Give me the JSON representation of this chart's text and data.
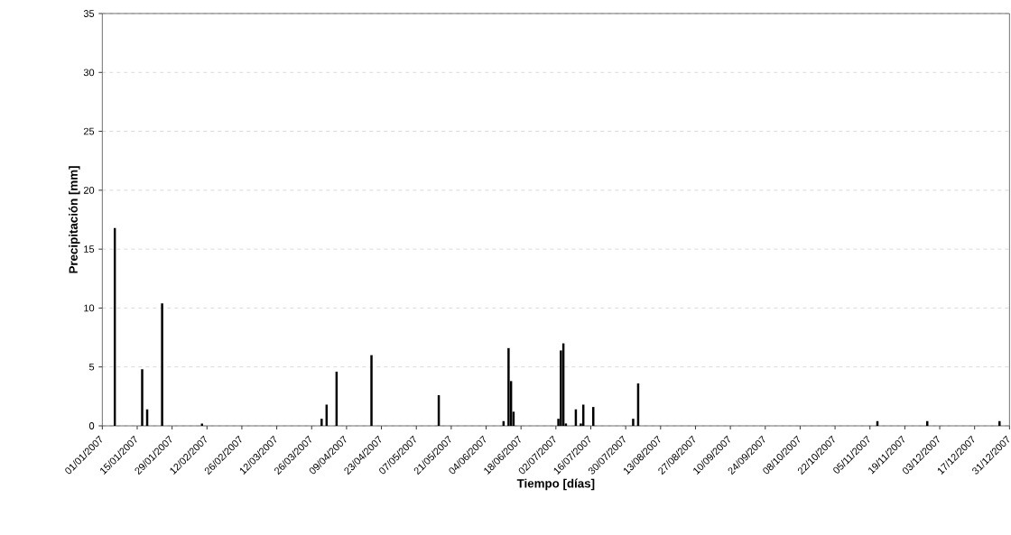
{
  "chart_data": {
    "type": "bar",
    "xlabel": "Tiempo [días]",
    "ylabel": "Precipitación [mm]",
    "x": [
      "2007-01-06",
      "2007-01-17",
      "2007-01-19",
      "2007-01-25",
      "2007-02-10",
      "2007-03-30",
      "2007-04-01",
      "2007-04-05",
      "2007-04-19",
      "2007-05-16",
      "2007-06-11",
      "2007-06-13",
      "2007-06-14",
      "2007-06-15",
      "2007-07-03",
      "2007-07-04",
      "2007-07-05",
      "2007-07-06",
      "2007-07-10",
      "2007-07-12",
      "2007-07-13",
      "2007-07-17",
      "2007-08-02",
      "2007-08-04",
      "2007-11-08",
      "2007-11-28",
      "2007-12-27"
    ],
    "values": [
      16.8,
      4.8,
      1.4,
      10.4,
      0.2,
      0.6,
      1.8,
      4.6,
      6.0,
      2.6,
      0.4,
      6.6,
      3.8,
      1.2,
      0.6,
      6.4,
      7.0,
      0.2,
      1.4,
      0.2,
      1.8,
      1.6,
      0.6,
      3.6,
      0.4,
      0.4,
      0.4
    ],
    "color": "#000000",
    "xlim": [
      "2007-01-01",
      "2007-12-31"
    ],
    "xticks": [
      {
        "value": "2007-01-01",
        "label": "01/01/2007"
      },
      {
        "value": "2007-01-15",
        "label": "15/01/2007"
      },
      {
        "value": "2007-01-29",
        "label": "29/01/2007"
      },
      {
        "value": "2007-02-12",
        "label": "12/02/2007"
      },
      {
        "value": "2007-02-26",
        "label": "26/02/2007"
      },
      {
        "value": "2007-03-12",
        "label": "12/03/2007"
      },
      {
        "value": "2007-03-26",
        "label": "26/03/2007"
      },
      {
        "value": "2007-04-09",
        "label": "09/04/2007"
      },
      {
        "value": "2007-04-23",
        "label": "23/04/2007"
      },
      {
        "value": "2007-05-07",
        "label": "07/05/2007"
      },
      {
        "value": "2007-05-21",
        "label": "21/05/2007"
      },
      {
        "value": "2007-06-04",
        "label": "04/06/2007"
      },
      {
        "value": "2007-06-18",
        "label": "18/06/2007"
      },
      {
        "value": "2007-07-02",
        "label": "02/07/2007"
      },
      {
        "value": "2007-07-16",
        "label": "16/07/2007"
      },
      {
        "value": "2007-07-30",
        "label": "30/07/2007"
      },
      {
        "value": "2007-08-13",
        "label": "13/08/2007"
      },
      {
        "value": "2007-08-27",
        "label": "27/08/2007"
      },
      {
        "value": "2007-09-10",
        "label": "10/09/2007"
      },
      {
        "value": "2007-09-24",
        "label": "24/09/2007"
      },
      {
        "value": "2007-10-08",
        "label": "08/10/2007"
      },
      {
        "value": "2007-10-22",
        "label": "22/10/2007"
      },
      {
        "value": "2007-11-05",
        "label": "05/11/2007"
      },
      {
        "value": "2007-11-19",
        "label": "19/11/2007"
      },
      {
        "value": "2007-12-03",
        "label": "03/12/2007"
      },
      {
        "value": "2007-12-17",
        "label": "17/12/2007"
      },
      {
        "value": "2007-12-31",
        "label": "31/12/2007"
      }
    ],
    "ylim": [
      0,
      35
    ],
    "yticks": [
      0,
      5,
      10,
      15,
      20,
      25,
      30,
      35
    ],
    "grid": "y"
  }
}
